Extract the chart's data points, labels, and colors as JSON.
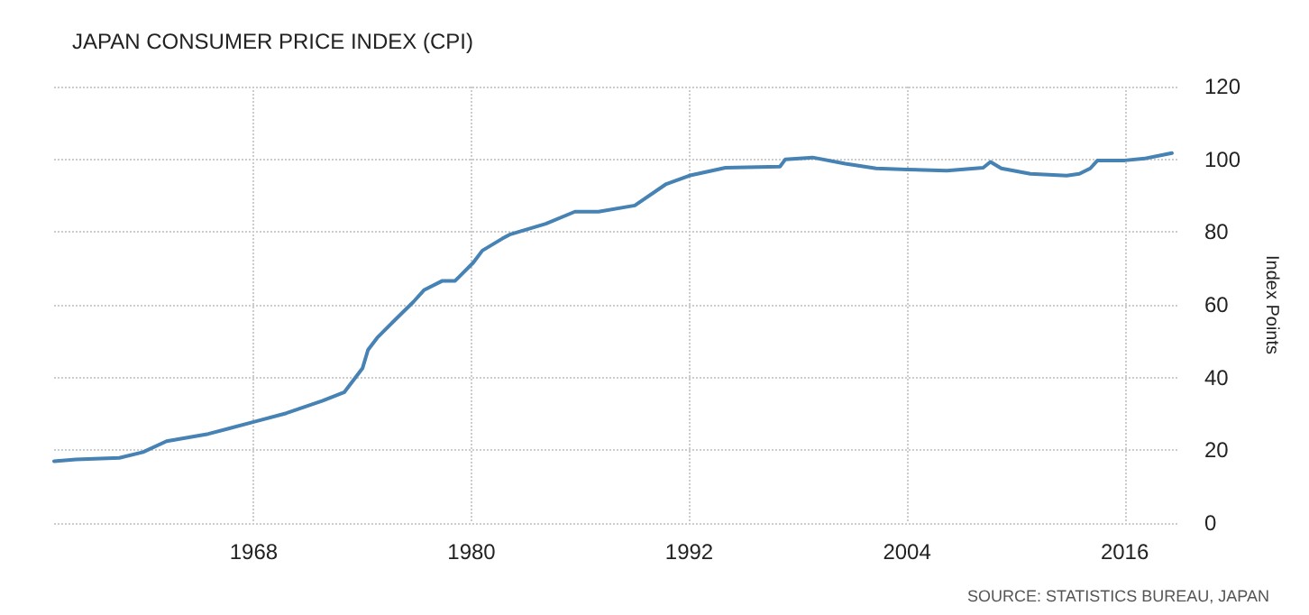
{
  "chart_data": {
    "type": "line",
    "title": "JAPAN CONSUMER PRICE INDEX (CPI)",
    "ylabel": "Index Points",
    "annotations": [
      "SOURCE: STATISTICS BUREAU, JAPAN"
    ],
    "x": [
      1957.0,
      1958.2,
      1960.6,
      1961.9,
      1963.2,
      1965.5,
      1968.0,
      1969.8,
      1971.8,
      1973.0,
      1973.5,
      1974.0,
      1974.3,
      1974.8,
      1975.8,
      1976.8,
      1977.4,
      1978.4,
      1979.1,
      1980.1,
      1980.6,
      1981.7,
      1982.1,
      1984.1,
      1985.7,
      1987.0,
      1989.0,
      1990.7,
      1992.0,
      1994.0,
      1997.0,
      1997.3,
      1998.8,
      2000.6,
      2002.3,
      2004.0,
      2006.2,
      2008.2,
      2008.6,
      2009.2,
      2010.8,
      2012.8,
      2013.5,
      2014.1,
      2014.5,
      2016.0,
      2017.1,
      2018.6
    ],
    "series": [
      {
        "color": "#4682b4",
        "values": [
          17.0,
          17.5,
          17.9,
          19.5,
          22.5,
          24.5,
          27.8,
          30.2,
          33.6,
          36.0,
          39.3,
          42.6,
          47.6,
          50.9,
          55.9,
          60.8,
          64.1,
          66.6,
          66.6,
          71.6,
          74.9,
          78.2,
          79.3,
          82.3,
          85.6,
          85.6,
          87.3,
          93.1,
          95.5,
          97.7,
          98.0,
          100.0,
          100.5,
          98.8,
          97.5,
          97.2,
          96.9,
          97.7,
          99.3,
          97.5,
          96.0,
          95.5,
          96.0,
          97.5,
          99.7,
          99.7,
          100.2,
          101.7
        ]
      }
    ],
    "xlim": [
      1957,
      2019
    ],
    "xticks": [
      1968,
      1980,
      1992,
      2004,
      2016
    ],
    "ylim": [
      0,
      120
    ],
    "yticks": [
      0,
      20,
      40,
      60,
      80,
      100,
      120
    ],
    "grid": true,
    "marker": "none",
    "line_style": "solid"
  }
}
